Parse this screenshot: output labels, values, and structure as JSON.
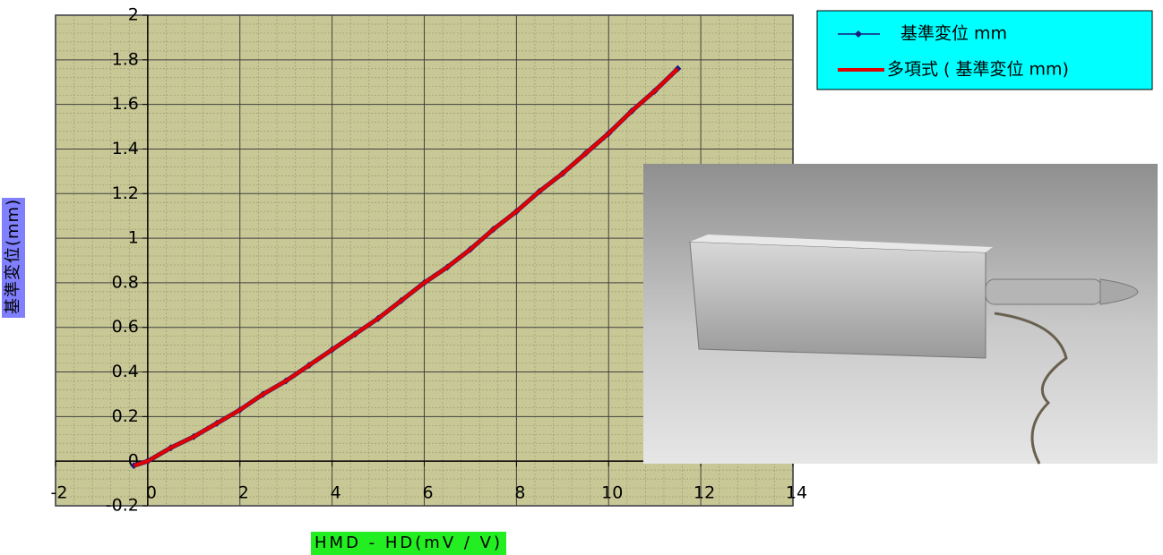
{
  "chart_data": {
    "type": "scatter",
    "xlabel": "HMD - HD(mV / V)",
    "ylabel": "基準変位(mm)",
    "x": [
      -0.3,
      0,
      0.5,
      1,
      1.5,
      2,
      2.5,
      3,
      3.5,
      4,
      4.5,
      5,
      5.5,
      6,
      6.5,
      7,
      7.5,
      8,
      8.5,
      9,
      9.5,
      10,
      10.5,
      11,
      11.5
    ],
    "series": [
      {
        "name": "基準変位 mm",
        "color": "#1a1a80",
        "values": [
          -0.02,
          0,
          0.06,
          0.11,
          0.17,
          0.23,
          0.3,
          0.36,
          0.43,
          0.5,
          0.57,
          0.64,
          0.72,
          0.8,
          0.87,
          0.95,
          1.04,
          1.12,
          1.21,
          1.29,
          1.38,
          1.47,
          1.57,
          1.66,
          1.76
        ]
      },
      {
        "name": "多項式 ( 基準変位 mm)",
        "color": "#e00000",
        "trendline": true,
        "values": [
          -0.02,
          0,
          0.06,
          0.11,
          0.17,
          0.23,
          0.3,
          0.36,
          0.43,
          0.5,
          0.57,
          0.64,
          0.72,
          0.8,
          0.87,
          0.95,
          1.04,
          1.12,
          1.21,
          1.29,
          1.38,
          1.47,
          1.57,
          1.66,
          1.76
        ]
      }
    ],
    "xlim": [
      -2,
      14
    ],
    "xticks": [
      -2,
      0,
      2,
      4,
      6,
      8,
      10,
      12,
      14
    ],
    "ylim": [
      -0.2,
      2
    ],
    "yticks": [
      -0.2,
      0,
      0.2,
      0.4,
      0.6,
      0.8,
      1,
      1.2,
      1.4,
      1.6,
      1.8,
      2
    ],
    "grid": true,
    "minor_grid": true,
    "legend": "upper right"
  }
}
